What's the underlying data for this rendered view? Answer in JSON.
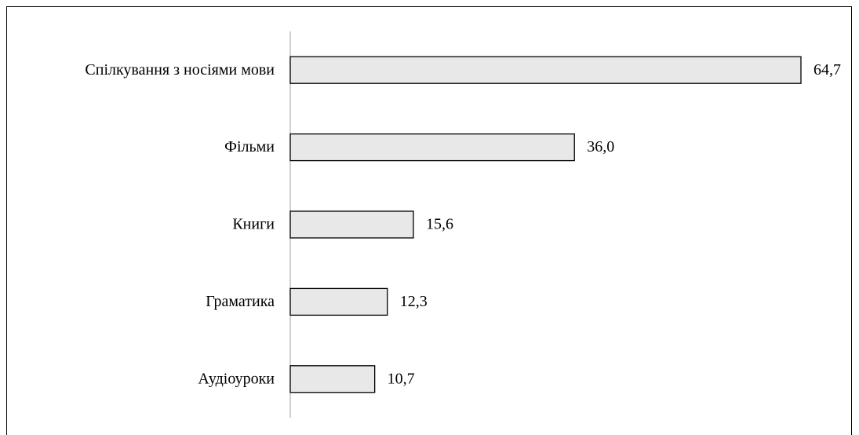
{
  "chart_data": {
    "type": "bar",
    "orientation": "horizontal",
    "categories": [
      "Спілкування з носіями мови",
      "Фільми",
      "Книги",
      "Граматика",
      "Аудіоуроки"
    ],
    "values": [
      64.7,
      36.0,
      15.6,
      12.3,
      10.7
    ],
    "value_labels": [
      "64,7",
      "36,0",
      "15,6",
      "12,3",
      "10,7"
    ],
    "color": "#e8e8e8"
  }
}
